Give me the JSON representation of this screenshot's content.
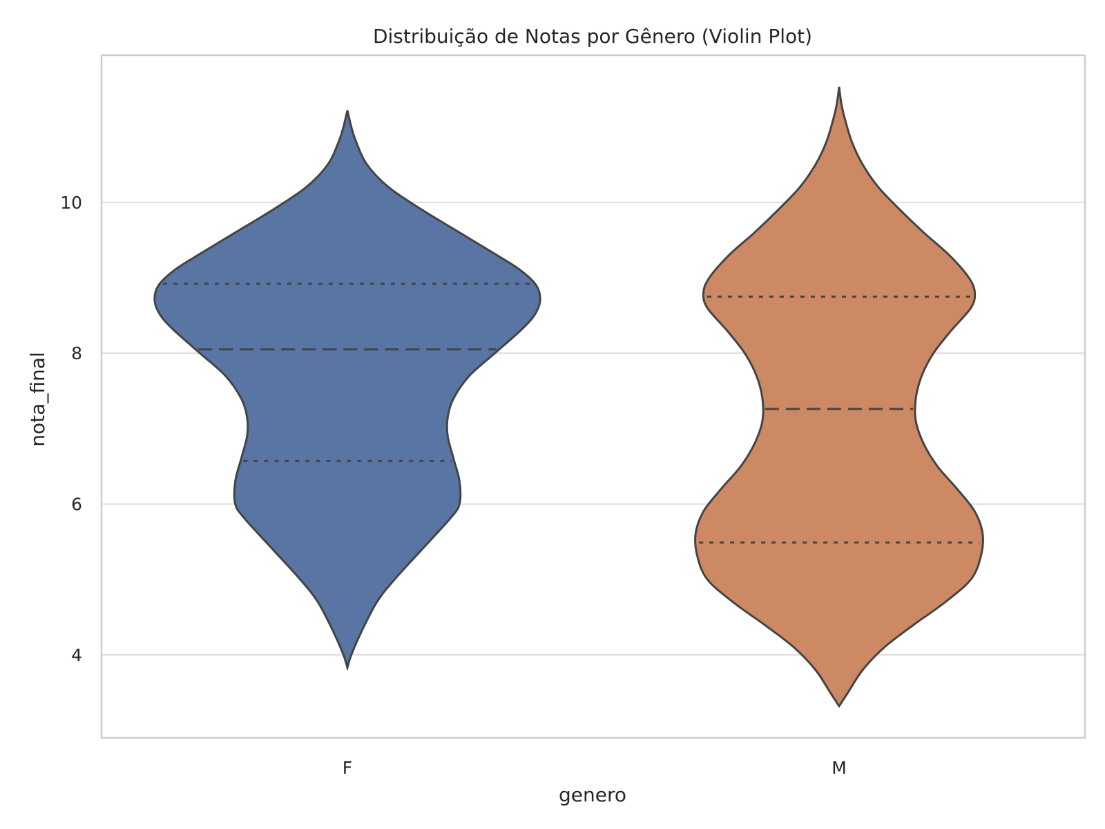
{
  "chart_data": {
    "type": "violin",
    "title": "Distribuição de Notas por Gênero (Violin Plot)",
    "xlabel": "genero",
    "ylabel": "nota_final",
    "ylim": [
      2.9,
      11.95
    ],
    "yticks": [
      "4",
      "6",
      "8",
      "10"
    ],
    "grid": true,
    "categories": [
      "F",
      "M"
    ],
    "series": [
      {
        "category": "F",
        "color": "#5875a4",
        "min": 3.83,
        "max": 11.22,
        "q1": 6.57,
        "median": 8.05,
        "q3": 8.92,
        "profile": [
          [
            3.83,
            0.0
          ],
          [
            4.0,
            0.02
          ],
          [
            4.3,
            0.07
          ],
          [
            4.7,
            0.15
          ],
          [
            5.0,
            0.24
          ],
          [
            5.4,
            0.38
          ],
          [
            5.8,
            0.52
          ],
          [
            6.0,
            0.57
          ],
          [
            6.3,
            0.57
          ],
          [
            6.6,
            0.54
          ],
          [
            6.9,
            0.51
          ],
          [
            7.15,
            0.51
          ],
          [
            7.4,
            0.54
          ],
          [
            7.7,
            0.62
          ],
          [
            8.0,
            0.75
          ],
          [
            8.3,
            0.88
          ],
          [
            8.5,
            0.95
          ],
          [
            8.7,
            0.98
          ],
          [
            8.9,
            0.96
          ],
          [
            9.1,
            0.88
          ],
          [
            9.3,
            0.76
          ],
          [
            9.6,
            0.57
          ],
          [
            9.9,
            0.38
          ],
          [
            10.2,
            0.21
          ],
          [
            10.5,
            0.1
          ],
          [
            10.8,
            0.045
          ],
          [
            11.0,
            0.02
          ],
          [
            11.22,
            0.0
          ]
        ]
      },
      {
        "category": "M",
        "color": "#cc8963",
        "min": 3.32,
        "max": 11.53,
        "q1": 5.49,
        "median": 7.26,
        "q3": 8.75,
        "profile": [
          [
            3.32,
            0.0
          ],
          [
            3.5,
            0.045
          ],
          [
            3.8,
            0.12
          ],
          [
            4.1,
            0.23
          ],
          [
            4.4,
            0.38
          ],
          [
            4.7,
            0.54
          ],
          [
            5.0,
            0.67
          ],
          [
            5.3,
            0.72
          ],
          [
            5.6,
            0.73
          ],
          [
            5.9,
            0.69
          ],
          [
            6.2,
            0.6
          ],
          [
            6.5,
            0.5
          ],
          [
            6.8,
            0.43
          ],
          [
            7.1,
            0.39
          ],
          [
            7.4,
            0.39
          ],
          [
            7.7,
            0.42
          ],
          [
            8.0,
            0.48
          ],
          [
            8.3,
            0.57
          ],
          [
            8.6,
            0.67
          ],
          [
            8.8,
            0.69
          ],
          [
            9.0,
            0.66
          ],
          [
            9.3,
            0.56
          ],
          [
            9.6,
            0.43
          ],
          [
            9.9,
            0.31
          ],
          [
            10.2,
            0.2
          ],
          [
            10.5,
            0.12
          ],
          [
            10.8,
            0.065
          ],
          [
            11.1,
            0.03
          ],
          [
            11.3,
            0.012
          ],
          [
            11.53,
            0.0
          ]
        ]
      }
    ]
  }
}
